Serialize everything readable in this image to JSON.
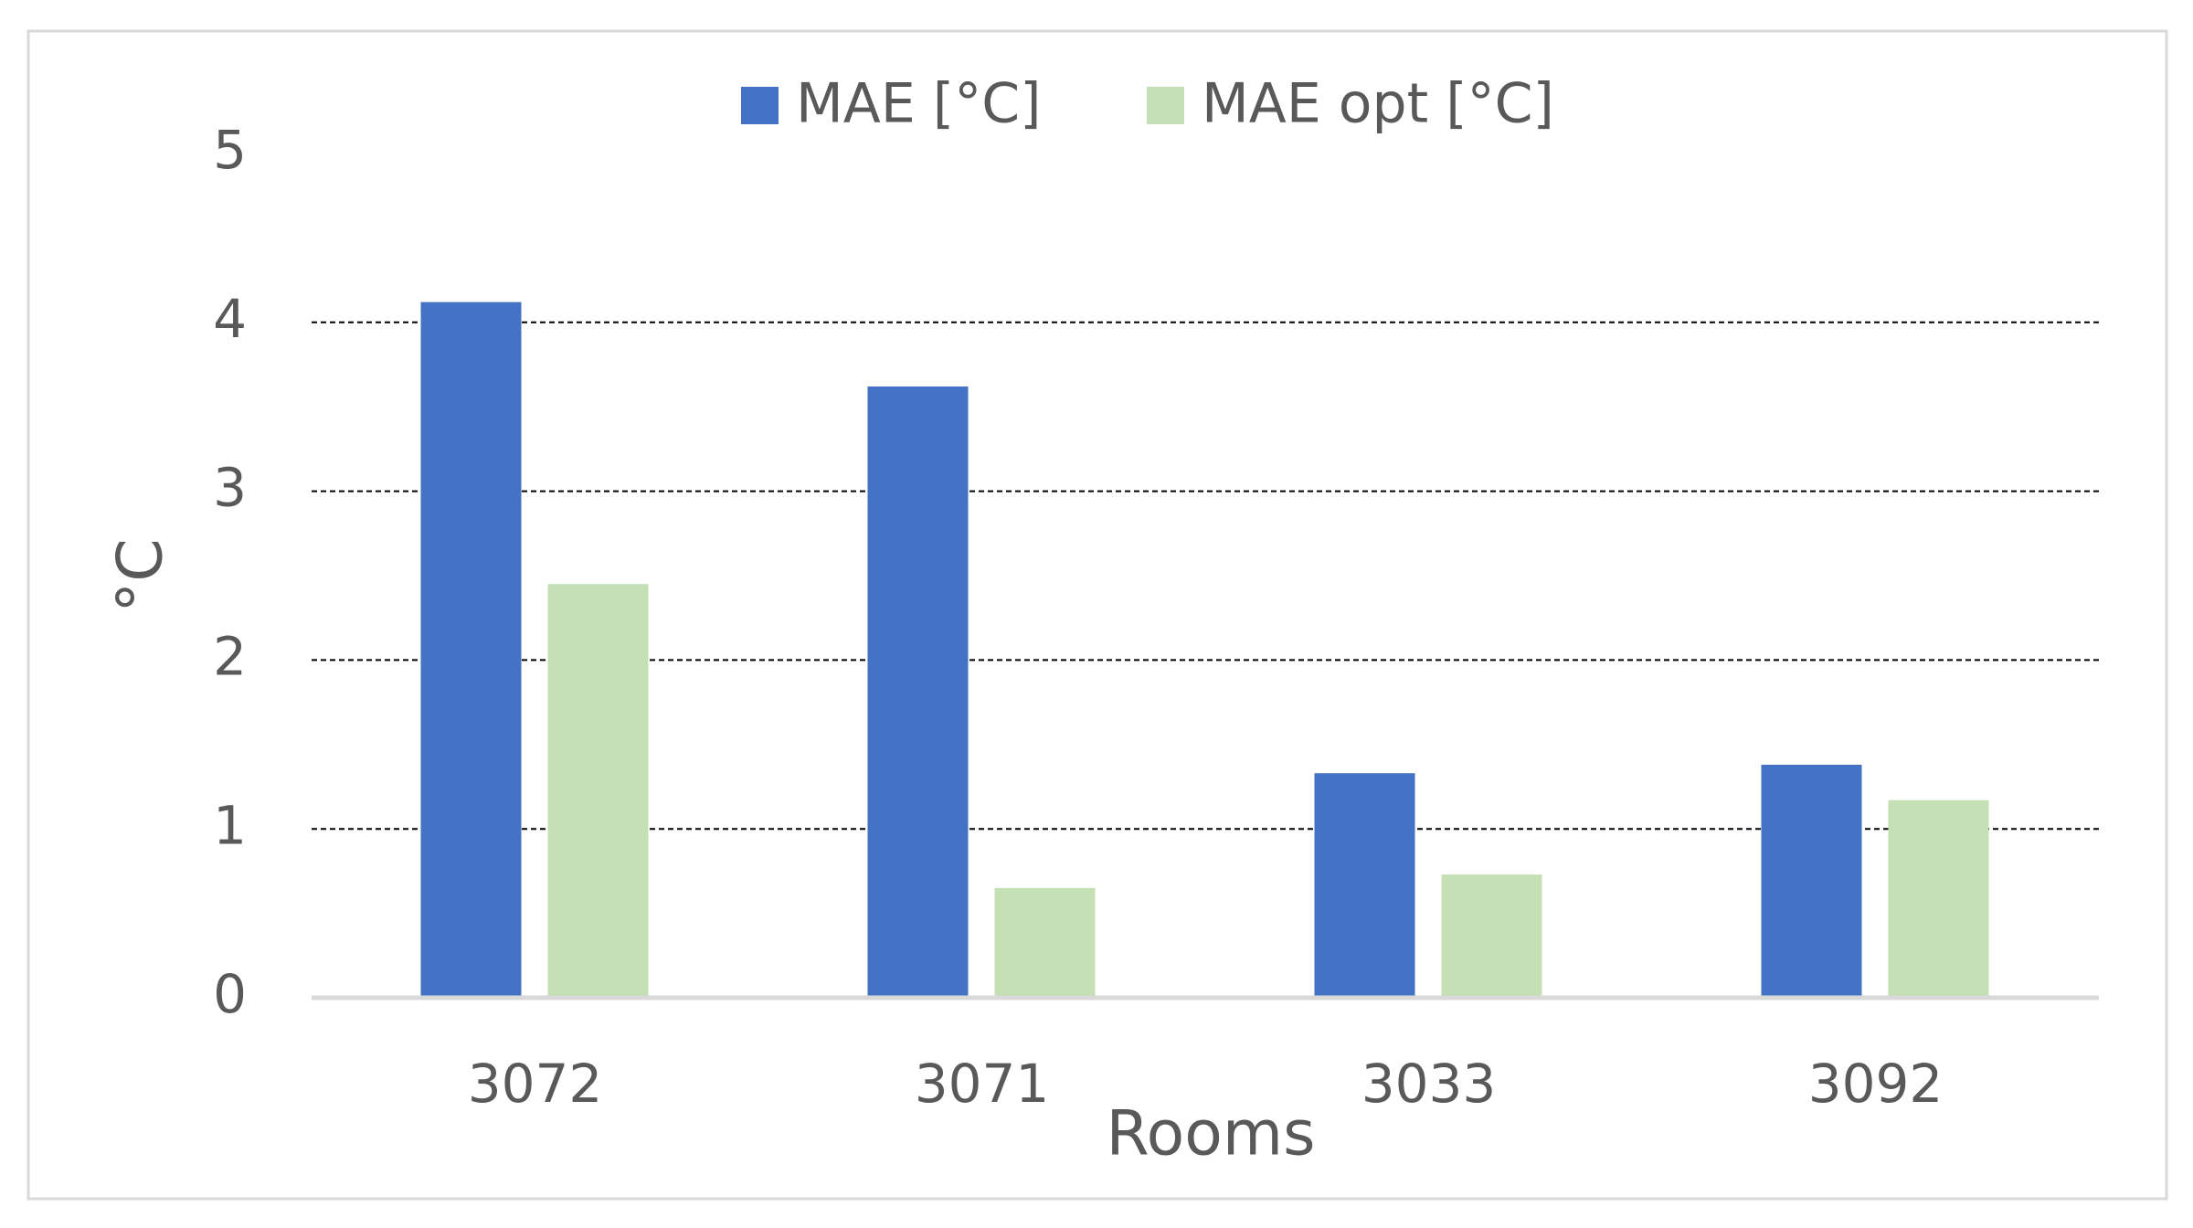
{
  "chart_data": {
    "type": "bar",
    "x_label": "Rooms",
    "y_label": "°C",
    "categories": [
      "3072",
      "3071",
      "3033",
      "3092"
    ],
    "series": [
      {
        "name": "MAE [°C]",
        "color": "#4472c4",
        "values": [
          4.12,
          3.62,
          1.33,
          1.38
        ]
      },
      {
        "name": "MAE opt [°C]",
        "color": "#c5e0b4",
        "values": [
          2.45,
          0.65,
          0.73,
          1.17
        ]
      }
    ],
    "ylim": [
      0,
      5
    ],
    "yticks": [
      0,
      1,
      2,
      3,
      4,
      5
    ],
    "grid": true,
    "legend": "top"
  }
}
